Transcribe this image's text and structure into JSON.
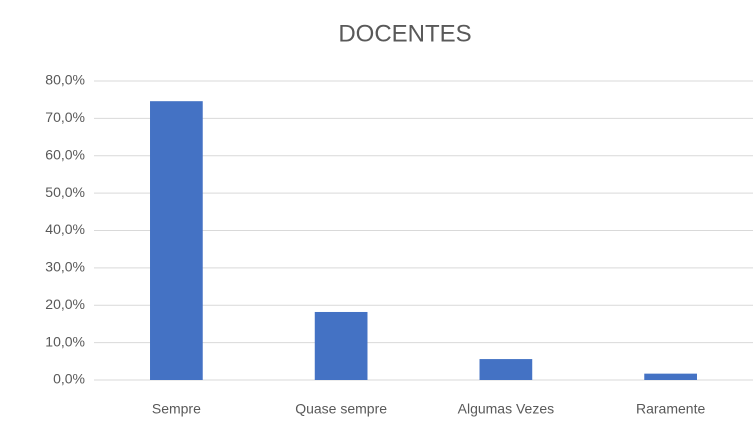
{
  "chart_data": {
    "type": "bar",
    "title": "DOCENTES",
    "categories": [
      "Sempre",
      "Quase sempre",
      "Algumas Vezes",
      "Raramente"
    ],
    "values": [
      74.6,
      18.2,
      5.6,
      1.7
    ],
    "color": "#4472c4",
    "ylim": [
      0,
      80
    ],
    "yticks": [
      {
        "value": 0,
        "label": "0,0%"
      },
      {
        "value": 10,
        "label": "10,0%"
      },
      {
        "value": 20,
        "label": "20,0%"
      },
      {
        "value": 30,
        "label": "30,0%"
      },
      {
        "value": 40,
        "label": "40,0%"
      },
      {
        "value": 50,
        "label": "50,0%"
      },
      {
        "value": 60,
        "label": "60,0%"
      },
      {
        "value": 70,
        "label": "70,0%"
      },
      {
        "value": 80,
        "label": "80,0%"
      }
    ],
    "grid": true
  }
}
